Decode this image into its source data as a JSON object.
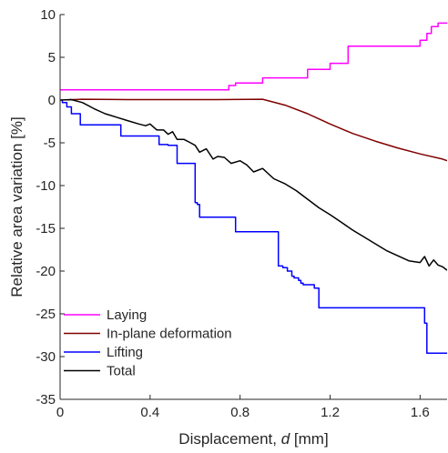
{
  "chart_data": {
    "type": "line",
    "title": "",
    "xlabel": "Displacement, ",
    "xlabel_var": "d",
    "xlabel_unit": " [mm]",
    "ylabel": "Relative area variation [%]",
    "xlim": [
      0,
      1.72
    ],
    "ylim": [
      -35,
      10
    ],
    "xticks": [
      0,
      0.4,
      0.8,
      1.2,
      1.6
    ],
    "xtick_labels": [
      "0",
      "0.4",
      "0.8",
      "1.2",
      "1.6"
    ],
    "yticks": [
      10,
      5,
      0,
      -5,
      -10,
      -15,
      -20,
      -25,
      -30,
      -35
    ],
    "ytick_labels": [
      "10",
      "5",
      "0",
      "-5",
      "-10",
      "-15",
      "-20",
      "-25",
      "-30",
      "-35"
    ],
    "grid": false,
    "legend_position": "bottom-left",
    "series": [
      {
        "name": "Laying",
        "color": "#ff00ff",
        "step": true,
        "x": [
          0,
          0.75,
          0.78,
          0.9,
          1.1,
          1.2,
          1.28,
          1.6,
          1.63,
          1.65,
          1.68,
          1.72
        ],
        "y": [
          1.2,
          1.7,
          2.0,
          2.6,
          3.6,
          4.3,
          6.3,
          7.0,
          7.8,
          8.6,
          9.0,
          9.0
        ]
      },
      {
        "name": "In-plane deformation",
        "color": "#800000",
        "step": false,
        "x": [
          0,
          0.1,
          0.3,
          0.5,
          0.7,
          0.9,
          1.0,
          1.1,
          1.2,
          1.3,
          1.4,
          1.5,
          1.6,
          1.7,
          1.72
        ],
        "y": [
          0,
          0.1,
          0.05,
          0.05,
          0.05,
          0.1,
          -0.6,
          -1.6,
          -2.8,
          -3.9,
          -4.8,
          -5.6,
          -6.3,
          -6.9,
          -7.1
        ]
      },
      {
        "name": "Lifting",
        "color": "#0000ff",
        "step": true,
        "x": [
          0,
          0.01,
          0.03,
          0.05,
          0.09,
          0.27,
          0.44,
          0.48,
          0.52,
          0.58,
          0.6,
          0.61,
          0.62,
          0.64,
          0.78,
          0.97,
          0.99,
          1.01,
          1.03,
          1.04,
          1.06,
          1.07,
          1.08,
          1.11,
          1.13,
          1.15,
          1.16,
          1.62,
          1.63,
          1.65,
          1.72
        ],
        "y": [
          0,
          -0.3,
          -0.8,
          -1.6,
          -2.9,
          -4.2,
          -5.2,
          -5.3,
          -7.4,
          -7.4,
          -12.0,
          -12.2,
          -13.7,
          -13.7,
          -15.4,
          -19.4,
          -19.6,
          -20.0,
          -20.6,
          -20.8,
          -21.1,
          -21.4,
          -21.6,
          -21.6,
          -22.0,
          -24.3,
          -24.3,
          -26.1,
          -29.6,
          -29.6,
          -29.6
        ]
      },
      {
        "name": "Total",
        "color": "#000000",
        "step": false,
        "x": [
          0,
          0.05,
          0.1,
          0.15,
          0.2,
          0.25,
          0.3,
          0.35,
          0.38,
          0.4,
          0.43,
          0.46,
          0.48,
          0.5,
          0.52,
          0.55,
          0.58,
          0.6,
          0.62,
          0.65,
          0.68,
          0.7,
          0.73,
          0.76,
          0.8,
          0.83,
          0.86,
          0.9,
          0.95,
          1.0,
          1.05,
          1.1,
          1.15,
          1.2,
          1.25,
          1.3,
          1.35,
          1.4,
          1.45,
          1.5,
          1.55,
          1.6,
          1.62,
          1.64,
          1.66,
          1.68,
          1.7,
          1.72
        ],
        "y": [
          0,
          0.05,
          -0.3,
          -1.0,
          -1.6,
          -2.0,
          -2.4,
          -2.8,
          -3.0,
          -2.8,
          -3.5,
          -3.5,
          -4.0,
          -3.7,
          -4.6,
          -4.6,
          -5.0,
          -5.3,
          -6.1,
          -5.7,
          -6.9,
          -6.6,
          -6.7,
          -7.4,
          -7.1,
          -7.6,
          -8.4,
          -8.0,
          -9.2,
          -9.8,
          -10.6,
          -11.6,
          -12.6,
          -13.4,
          -14.3,
          -15.2,
          -16.0,
          -16.8,
          -17.6,
          -18.2,
          -18.8,
          -19.0,
          -18.3,
          -19.4,
          -18.7,
          -19.3,
          -19.5,
          -19.9
        ]
      }
    ]
  }
}
